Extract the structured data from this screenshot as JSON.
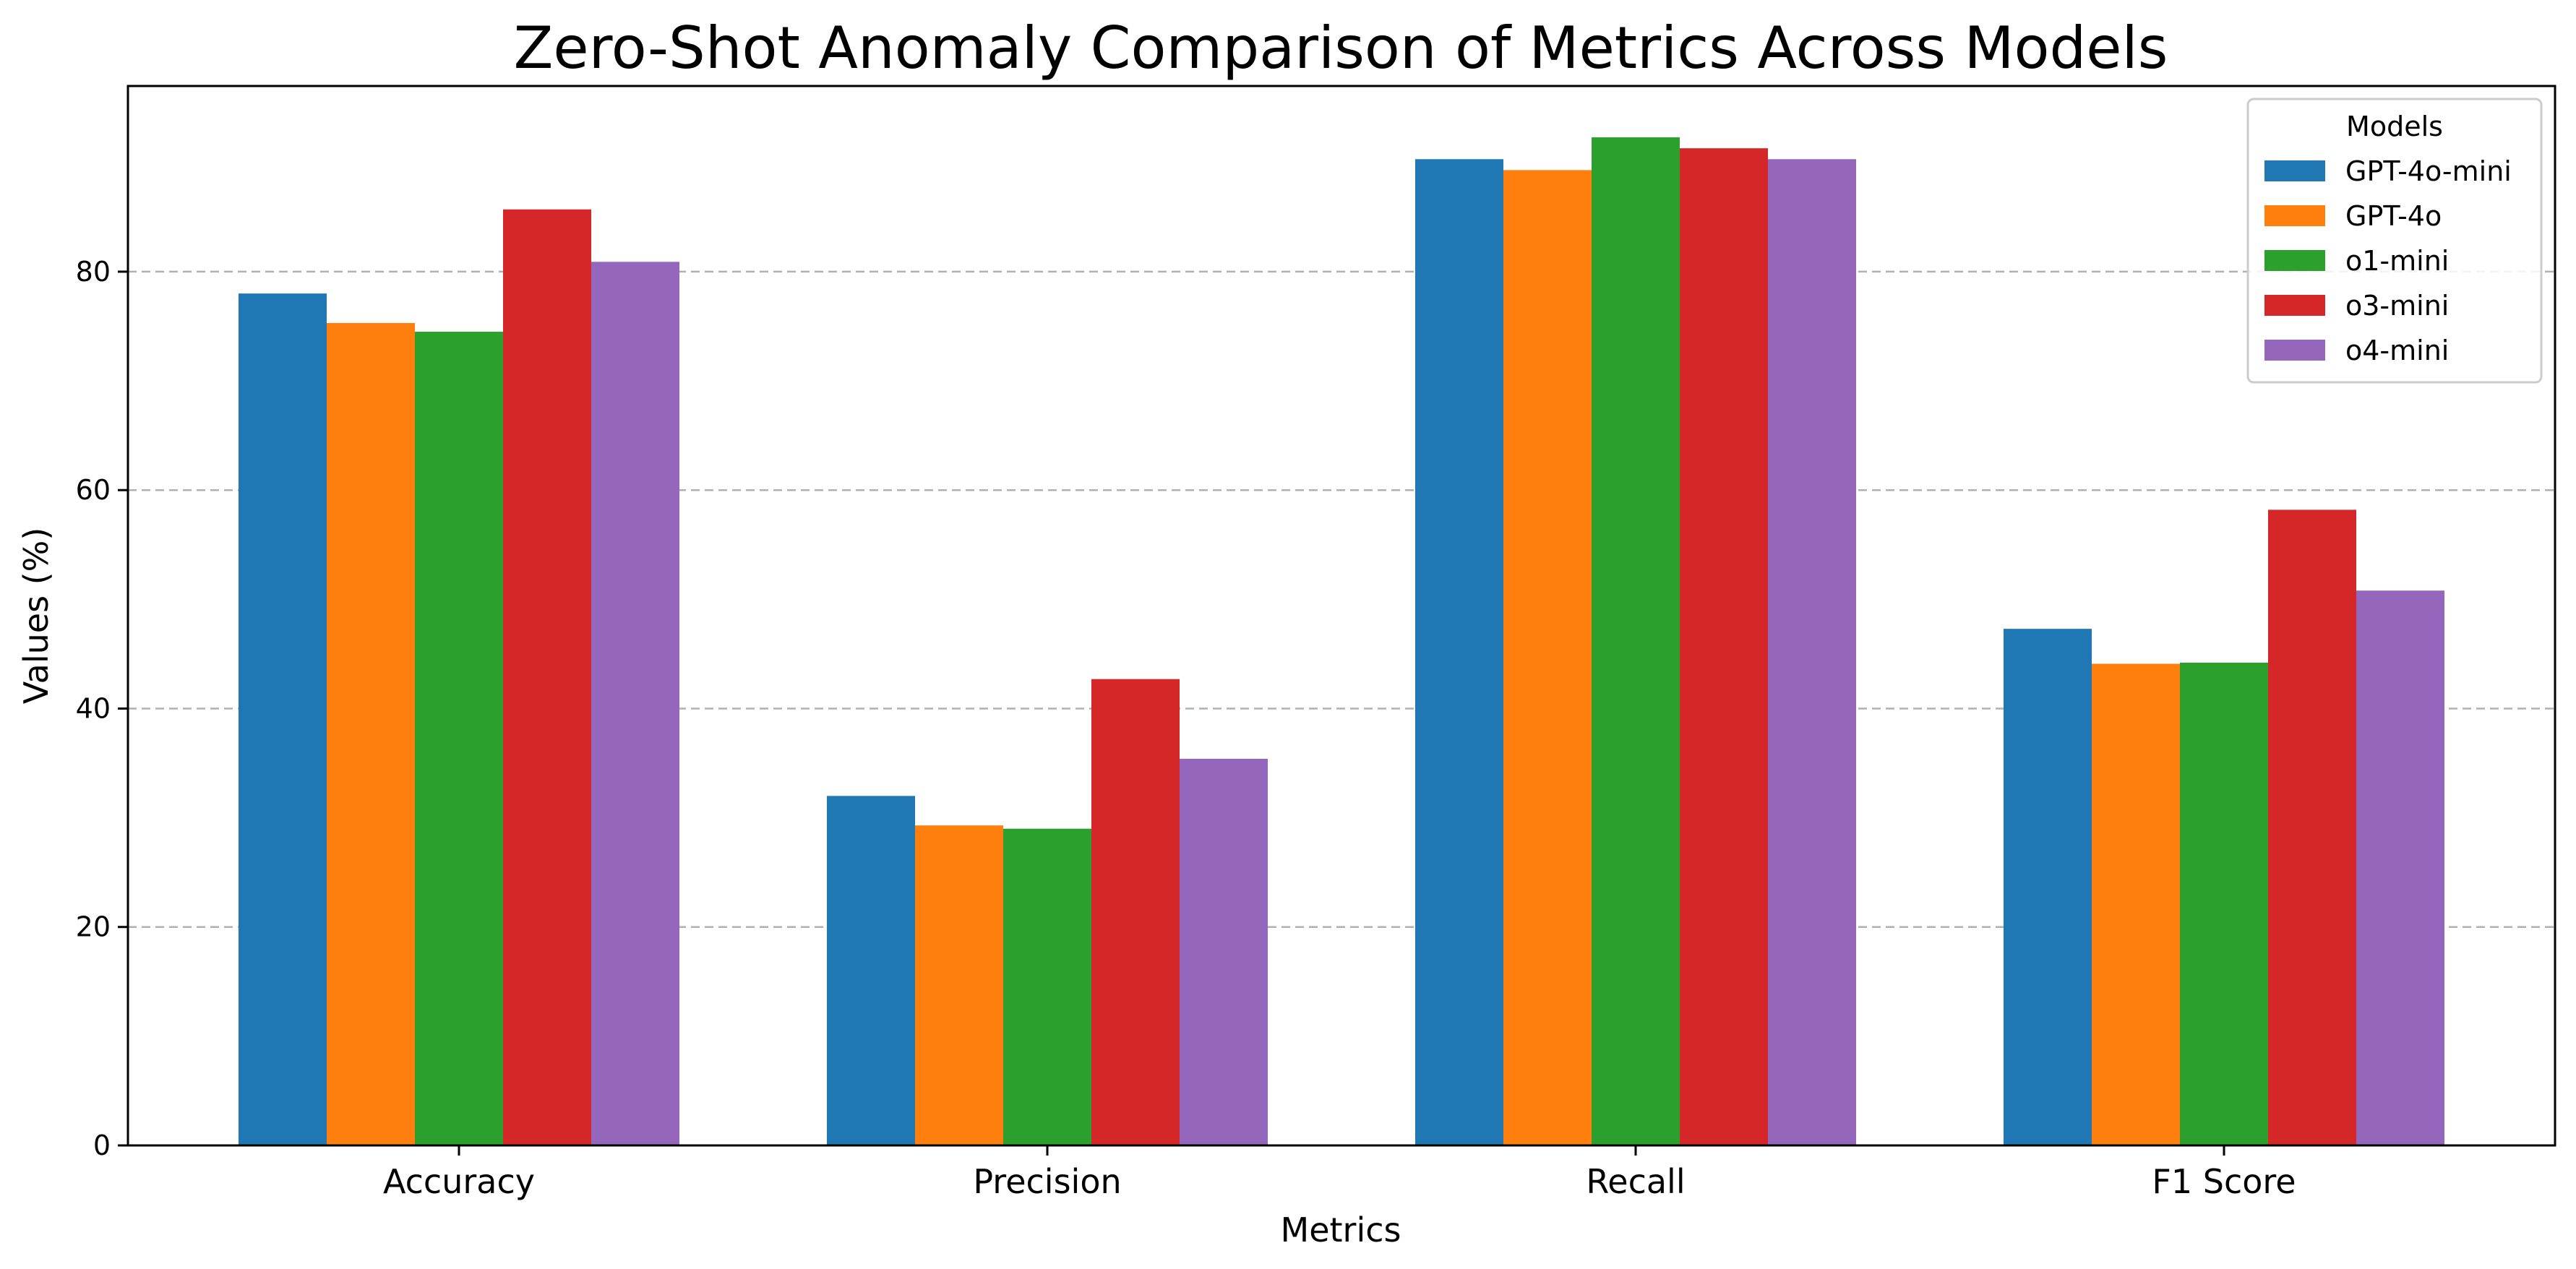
{
  "chart_data": {
    "type": "bar",
    "title": "Zero-Shot Anomaly Comparison of Metrics Across Models",
    "xlabel": "Metrics",
    "ylabel": "Values (%)",
    "categories": [
      "Accuracy",
      "Precision",
      "Recall",
      "F1 Score"
    ],
    "ylim": [
      0,
      97
    ],
    "yticks": [
      0,
      20,
      40,
      60,
      80
    ],
    "grid": "y-dashed",
    "legend": {
      "title": "Models",
      "position": "top-right"
    },
    "series": [
      {
        "name": "GPT-4o-mini",
        "color": "#1f77b4",
        "values": [
          78.0,
          32.0,
          90.3,
          47.3
        ]
      },
      {
        "name": "GPT-4o",
        "color": "#ff7f0e",
        "values": [
          75.3,
          29.3,
          89.3,
          44.1
        ]
      },
      {
        "name": "o1-mini",
        "color": "#2ca02c",
        "values": [
          74.5,
          29.0,
          92.3,
          44.2
        ]
      },
      {
        "name": "o3-mini",
        "color": "#d62728",
        "values": [
          85.7,
          42.7,
          91.3,
          58.2
        ]
      },
      {
        "name": "o4-mini",
        "color": "#9467bd",
        "values": [
          80.9,
          35.4,
          90.3,
          50.8
        ]
      }
    ]
  }
}
